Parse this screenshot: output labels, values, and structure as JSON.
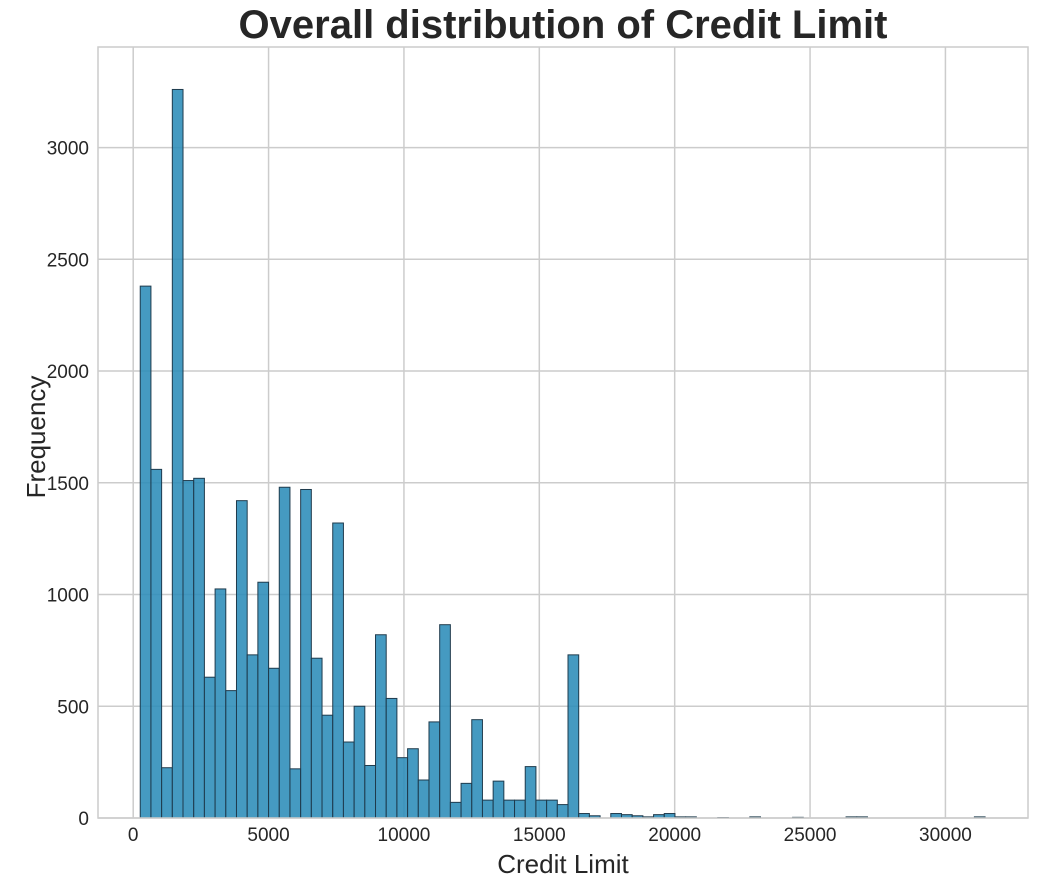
{
  "chart_data": {
    "type": "bar",
    "title": "Overall distribution of Credit Limit",
    "xlabel": "Credit Limit",
    "ylabel": "Frequency",
    "xlim": [
      -1300,
      33050
    ],
    "ylim": [
      0,
      3450
    ],
    "xticks": [
      0,
      5000,
      10000,
      15000,
      20000,
      25000,
      30000
    ],
    "yticks": [
      0,
      500,
      1000,
      1500,
      2000,
      2500,
      3000
    ],
    "grid": true,
    "bar_color": "#2b8cb8",
    "edge_color": "#1f3b4d",
    "bin_start": 260,
    "bin_width": 395,
    "values": [
      2380,
      1560,
      225,
      3260,
      1510,
      1520,
      630,
      1025,
      570,
      1420,
      730,
      1055,
      670,
      1480,
      220,
      1470,
      715,
      460,
      1320,
      340,
      500,
      235,
      820,
      535,
      270,
      310,
      170,
      430,
      865,
      70,
      155,
      440,
      80,
      165,
      80,
      80,
      230,
      80,
      80,
      60,
      730,
      20,
      10,
      0,
      20,
      15,
      10,
      5,
      15,
      20,
      5,
      5,
      0,
      0,
      2,
      0,
      0,
      5,
      0,
      0,
      0,
      3,
      0,
      0,
      0,
      0,
      5,
      5,
      0,
      0,
      0,
      0,
      0,
      0,
      0,
      0,
      0,
      0,
      5
    ]
  }
}
